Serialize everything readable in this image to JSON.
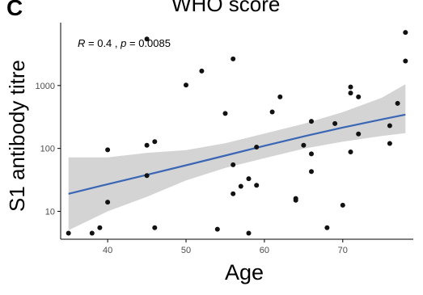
{
  "panel_label": "C",
  "stats": {
    "r_label": "R",
    "r_value": "= 0.4 ,",
    "p_label": "p",
    "p_value": "= 0.0085"
  },
  "chart_data": {
    "type": "scatter",
    "title": "WHO score",
    "xlabel": "Age",
    "ylabel": "S1 antibody titre",
    "xlim": [
      34,
      79
    ],
    "ylim": [
      3.6,
      10000
    ],
    "yscale": "log10",
    "x_ticks": [
      40,
      50,
      60,
      70
    ],
    "x_tick_labels": [
      "40",
      "50",
      "60",
      "70"
    ],
    "y_ticks": [
      10,
      100,
      1000
    ],
    "y_tick_labels": [
      "10",
      "100",
      "1000"
    ],
    "grid": false,
    "points": [
      {
        "x": 35,
        "y": 4.5
      },
      {
        "x": 38,
        "y": 4.5
      },
      {
        "x": 39,
        "y": 5.5
      },
      {
        "x": 40,
        "y": 95
      },
      {
        "x": 40,
        "y": 14
      },
      {
        "x": 45,
        "y": 5500
      },
      {
        "x": 45,
        "y": 112
      },
      {
        "x": 45,
        "y": 37
      },
      {
        "x": 46,
        "y": 128
      },
      {
        "x": 46,
        "y": 5.5
      },
      {
        "x": 50,
        "y": 1020
      },
      {
        "x": 52,
        "y": 1700
      },
      {
        "x": 54,
        "y": 5.2
      },
      {
        "x": 55,
        "y": 360
      },
      {
        "x": 56,
        "y": 2650
      },
      {
        "x": 56,
        "y": 55
      },
      {
        "x": 56,
        "y": 19
      },
      {
        "x": 57,
        "y": 25
      },
      {
        "x": 58,
        "y": 33
      },
      {
        "x": 58,
        "y": 4.5
      },
      {
        "x": 59,
        "y": 105
      },
      {
        "x": 59,
        "y": 26
      },
      {
        "x": 61,
        "y": 380
      },
      {
        "x": 62,
        "y": 660
      },
      {
        "x": 64,
        "y": 16
      },
      {
        "x": 64,
        "y": 15
      },
      {
        "x": 65,
        "y": 112
      },
      {
        "x": 66,
        "y": 270
      },
      {
        "x": 66,
        "y": 82
      },
      {
        "x": 66,
        "y": 43
      },
      {
        "x": 68,
        "y": 5.5
      },
      {
        "x": 69,
        "y": 248
      },
      {
        "x": 70,
        "y": 12.5
      },
      {
        "x": 71,
        "y": 950
      },
      {
        "x": 71,
        "y": 760
      },
      {
        "x": 71,
        "y": 88
      },
      {
        "x": 72,
        "y": 660
      },
      {
        "x": 72,
        "y": 170
      },
      {
        "x": 76,
        "y": 230
      },
      {
        "x": 76,
        "y": 120
      },
      {
        "x": 77,
        "y": 520
      },
      {
        "x": 78,
        "y": 7000
      },
      {
        "x": 78,
        "y": 2450
      }
    ],
    "fit": {
      "x": [
        35,
        40,
        45,
        50,
        55,
        60,
        65,
        70,
        75,
        78
      ],
      "y": [
        19,
        27,
        38,
        54,
        77,
        110,
        155,
        215,
        290,
        345
      ],
      "ci_lower": [
        5,
        10,
        17,
        31,
        49,
        70,
        99,
        128,
        158,
        175
      ],
      "ci_upper": [
        72,
        72,
        85,
        94,
        121,
        172,
        246,
        377,
        640,
        1050
      ],
      "line_color": "#3a66b5",
      "band_color": "#d4d4d4"
    },
    "point_color": "#111111"
  }
}
